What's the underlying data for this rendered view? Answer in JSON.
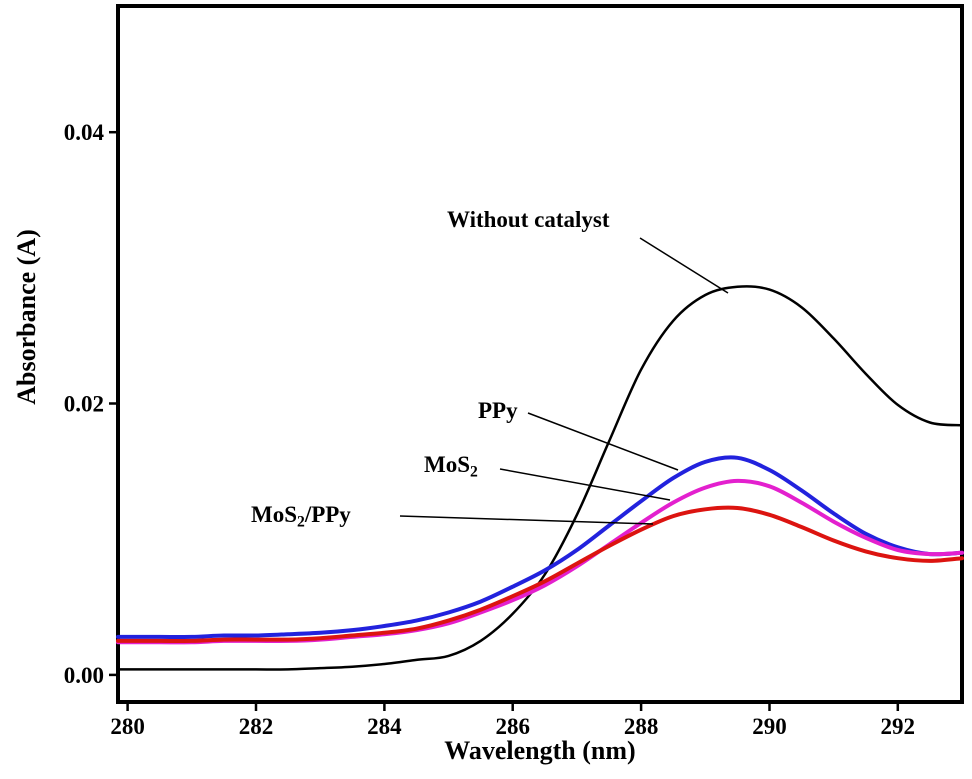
{
  "page": {
    "background": "#ffffff"
  },
  "chart_data": {
    "type": "line",
    "title": "",
    "xlabel": "Wavelength (nm)",
    "ylabel": "Absorbance (A)",
    "xlim": [
      279.85,
      293.0
    ],
    "ylim": [
      -0.002,
      0.0493
    ],
    "x_ticks": [
      280,
      282,
      284,
      286,
      288,
      290,
      292
    ],
    "y_ticks": [
      {
        "value": 0.0,
        "label": "0.00"
      },
      {
        "value": 0.02,
        "label": "0.02"
      },
      {
        "value": 0.04,
        "label": "0.04"
      }
    ],
    "grid": false,
    "legend_position": "none",
    "axis_color": "#000000",
    "x": [
      280,
      280.5,
      281,
      281.5,
      282,
      282.5,
      283,
      283.5,
      284,
      284.5,
      285,
      285.5,
      286,
      286.5,
      287,
      287.5,
      288,
      288.5,
      289,
      289.5,
      290,
      290.5,
      291,
      291.5,
      292,
      292.5,
      293
    ],
    "series": [
      {
        "id": "without-catalyst",
        "name": "Without catalyst",
        "color": "#000000",
        "width": 2.5,
        "values": [
          0.0004,
          0.0004,
          0.0004,
          0.0004,
          0.0004,
          0.0004,
          0.0005,
          0.0006,
          0.0008,
          0.0011,
          0.0014,
          0.0025,
          0.0045,
          0.0074,
          0.0118,
          0.0172,
          0.0225,
          0.0261,
          0.028,
          0.0286,
          0.0284,
          0.0271,
          0.0248,
          0.0222,
          0.0199,
          0.0186,
          0.0184
        ]
      },
      {
        "id": "ppy",
        "name": "PPy",
        "color": "#2222dd",
        "width": 4,
        "values": [
          0.0028,
          0.0028,
          0.0028,
          0.0029,
          0.0029,
          0.003,
          0.0031,
          0.0033,
          0.0036,
          0.004,
          0.0046,
          0.0054,
          0.0065,
          0.0077,
          0.0092,
          0.011,
          0.0128,
          0.0145,
          0.0157,
          0.016,
          0.0151,
          0.0136,
          0.0119,
          0.0104,
          0.0094,
          0.0089,
          0.009
        ]
      },
      {
        "id": "mos2",
        "name": "MoS2",
        "color": "#e320ce",
        "width": 4,
        "values": [
          0.0024,
          0.0024,
          0.0024,
          0.0025,
          0.0025,
          0.0025,
          0.0026,
          0.0028,
          0.003,
          0.0033,
          0.0038,
          0.0046,
          0.0055,
          0.0066,
          0.008,
          0.0096,
          0.0112,
          0.0127,
          0.0138,
          0.0143,
          0.0139,
          0.0127,
          0.0113,
          0.0101,
          0.0092,
          0.0089,
          0.009
        ]
      },
      {
        "id": "mos2-ppy",
        "name": "MoS2/PPy",
        "color": "#dc1410",
        "width": 4,
        "values": [
          0.0025,
          0.0025,
          0.0025,
          0.0026,
          0.0026,
          0.0026,
          0.0027,
          0.0029,
          0.0031,
          0.0034,
          0.004,
          0.0048,
          0.0058,
          0.0069,
          0.0082,
          0.0095,
          0.0107,
          0.0117,
          0.0122,
          0.0123,
          0.0118,
          0.0109,
          0.0099,
          0.0091,
          0.0086,
          0.0084,
          0.0086
        ]
      }
    ],
    "annotations": {
      "without_catalyst": {
        "text": "Without catalyst"
      },
      "ppy": {
        "text": "PPy"
      },
      "mos2": {
        "pre": "MoS",
        "sub": "2",
        "post": ""
      },
      "mos2_ppy": {
        "pre": "MoS",
        "sub": "2",
        "post": "/PPy"
      }
    }
  }
}
